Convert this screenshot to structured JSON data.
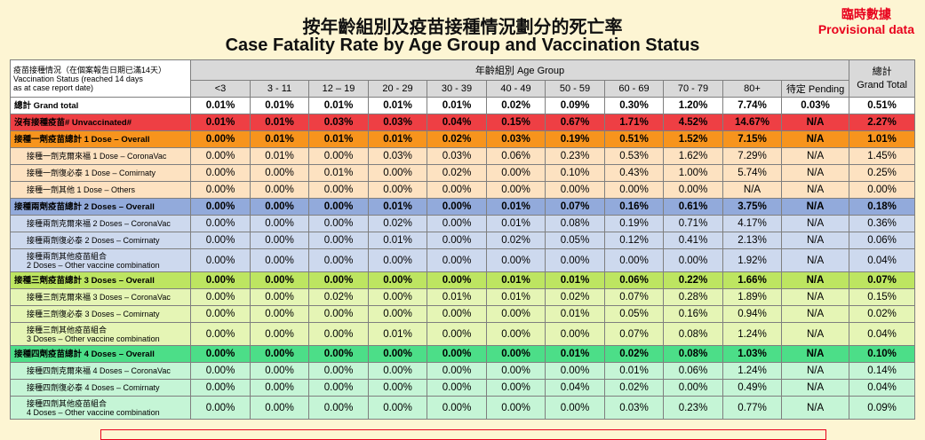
{
  "title_zh": "按年齡組別及疫苗接種情況劃分的死亡率",
  "title_en": "Case Fatality Rate by Age Group and Vaccination Status",
  "provisional_zh": "臨時數據",
  "provisional_en": "Provisional data",
  "header": {
    "status_label_zh": "疫苗接種情況（在個案報告日期已滿14天）",
    "status_label_en1": "Vaccination Status (reached 14 days",
    "status_label_en2": "as at case report date)",
    "age_group": "年齡組別 Age Group",
    "ages": [
      "<3",
      "3 - 11",
      "12 – 19",
      "20 - 29",
      "30 - 39",
      "40 - 49",
      "50 - 59",
      "60 - 69",
      "70 - 79",
      "80+",
      "待定 Pending"
    ],
    "total_zh": "總計",
    "total_en": "Grand Total"
  },
  "colors": {
    "white": "#ffffff",
    "red": "#ee3f44",
    "orange": "#f7941d",
    "peach": "#fde2c1",
    "blue": "#92aadb",
    "lightblue": "#cdd9ee",
    "lime": "#bde561",
    "lightlime": "#e5f5b5",
    "green": "#4cde88",
    "lightgreen": "#c5f5d6"
  },
  "rows": [
    {
      "label1": "總計 Grand total",
      "label2": "",
      "bold": true,
      "sub": false,
      "tall": false,
      "color": "white",
      "values": [
        "0.01%",
        "0.01%",
        "0.01%",
        "0.01%",
        "0.01%",
        "0.02%",
        "0.09%",
        "0.30%",
        "1.20%",
        "7.74%",
        "0.03%",
        "0.51%"
      ]
    },
    {
      "label1": "沒有接種疫苗# Unvaccinated#",
      "label2": "",
      "bold": true,
      "sub": false,
      "tall": false,
      "color": "red",
      "values": [
        "0.01%",
        "0.01%",
        "0.03%",
        "0.03%",
        "0.04%",
        "0.15%",
        "0.67%",
        "1.71%",
        "4.52%",
        "14.67%",
        "N/A",
        "2.27%"
      ]
    },
    {
      "label1": "接種一劑疫苗總計 1 Dose – Overall",
      "label2": "",
      "bold": true,
      "sub": false,
      "tall": false,
      "color": "orange",
      "values": [
        "0.00%",
        "0.01%",
        "0.01%",
        "0.01%",
        "0.02%",
        "0.03%",
        "0.19%",
        "0.51%",
        "1.52%",
        "7.15%",
        "N/A",
        "1.01%"
      ]
    },
    {
      "label1": "接種一劑克爾來福 1 Dose – CoronaVac",
      "label2": "",
      "bold": false,
      "sub": true,
      "tall": false,
      "color": "peach",
      "values": [
        "0.00%",
        "0.01%",
        "0.00%",
        "0.03%",
        "0.03%",
        "0.06%",
        "0.23%",
        "0.53%",
        "1.62%",
        "7.29%",
        "N/A",
        "1.45%"
      ]
    },
    {
      "label1": "接種一劑復必泰 1 Dose – Comirnaty",
      "label2": "",
      "bold": false,
      "sub": true,
      "tall": false,
      "color": "peach",
      "values": [
        "0.00%",
        "0.00%",
        "0.01%",
        "0.00%",
        "0.02%",
        "0.00%",
        "0.10%",
        "0.43%",
        "1.00%",
        "5.74%",
        "N/A",
        "0.25%"
      ]
    },
    {
      "label1": "接種一劑其他 1 Dose – Others",
      "label2": "",
      "bold": false,
      "sub": true,
      "tall": false,
      "color": "peach",
      "values": [
        "0.00%",
        "0.00%",
        "0.00%",
        "0.00%",
        "0.00%",
        "0.00%",
        "0.00%",
        "0.00%",
        "0.00%",
        "N/A",
        "N/A",
        "0.00%"
      ]
    },
    {
      "label1": "接種兩劑疫苗總計 2 Doses – Overall",
      "label2": "",
      "bold": true,
      "sub": false,
      "tall": false,
      "color": "blue",
      "values": [
        "0.00%",
        "0.00%",
        "0.00%",
        "0.01%",
        "0.00%",
        "0.01%",
        "0.07%",
        "0.16%",
        "0.61%",
        "3.75%",
        "N/A",
        "0.18%"
      ]
    },
    {
      "label1": "接種兩劑克爾來福 2 Doses – CoronaVac",
      "label2": "",
      "bold": false,
      "sub": true,
      "tall": false,
      "color": "lightblue",
      "values": [
        "0.00%",
        "0.00%",
        "0.00%",
        "0.02%",
        "0.00%",
        "0.01%",
        "0.08%",
        "0.19%",
        "0.71%",
        "4.17%",
        "N/A",
        "0.36%"
      ]
    },
    {
      "label1": "接種兩劑復必泰 2 Doses – Comirnaty",
      "label2": "",
      "bold": false,
      "sub": true,
      "tall": false,
      "color": "lightblue",
      "values": [
        "0.00%",
        "0.00%",
        "0.00%",
        "0.01%",
        "0.00%",
        "0.02%",
        "0.05%",
        "0.12%",
        "0.41%",
        "2.13%",
        "N/A",
        "0.06%"
      ]
    },
    {
      "label1": "接種兩劑其他疫苗組合",
      "label2": "2 Doses – Other vaccine combination",
      "bold": false,
      "sub": true,
      "tall": true,
      "color": "lightblue",
      "values": [
        "0.00%",
        "0.00%",
        "0.00%",
        "0.00%",
        "0.00%",
        "0.00%",
        "0.00%",
        "0.00%",
        "0.00%",
        "1.92%",
        "N/A",
        "0.04%"
      ]
    },
    {
      "label1": "接種三劑疫苗總計 3 Doses – Overall",
      "label2": "",
      "bold": true,
      "sub": false,
      "tall": false,
      "color": "lime",
      "values": [
        "0.00%",
        "0.00%",
        "0.00%",
        "0.00%",
        "0.00%",
        "0.01%",
        "0.01%",
        "0.06%",
        "0.22%",
        "1.66%",
        "N/A",
        "0.07%"
      ]
    },
    {
      "label1": "接種三劑克爾來福 3 Doses – CoronaVac",
      "label2": "",
      "bold": false,
      "sub": true,
      "tall": false,
      "color": "lightlime",
      "values": [
        "0.00%",
        "0.00%",
        "0.02%",
        "0.00%",
        "0.01%",
        "0.01%",
        "0.02%",
        "0.07%",
        "0.28%",
        "1.89%",
        "N/A",
        "0.15%"
      ]
    },
    {
      "label1": "接種三劑復必泰 3 Doses – Comirnaty",
      "label2": "",
      "bold": false,
      "sub": true,
      "tall": false,
      "color": "lightlime",
      "values": [
        "0.00%",
        "0.00%",
        "0.00%",
        "0.00%",
        "0.00%",
        "0.00%",
        "0.01%",
        "0.05%",
        "0.16%",
        "0.94%",
        "N/A",
        "0.02%"
      ]
    },
    {
      "label1": "接種三劑其他疫苗組合",
      "label2": "3 Doses – Other vaccine combination",
      "bold": false,
      "sub": true,
      "tall": true,
      "color": "lightlime",
      "values": [
        "0.00%",
        "0.00%",
        "0.00%",
        "0.01%",
        "0.00%",
        "0.00%",
        "0.00%",
        "0.07%",
        "0.08%",
        "1.24%",
        "N/A",
        "0.04%"
      ]
    },
    {
      "label1": "接種四劑疫苗總計 4 Doses – Overall",
      "label2": "",
      "bold": true,
      "sub": false,
      "tall": false,
      "color": "green",
      "values": [
        "0.00%",
        "0.00%",
        "0.00%",
        "0.00%",
        "0.00%",
        "0.00%",
        "0.01%",
        "0.02%",
        "0.08%",
        "1.03%",
        "N/A",
        "0.10%"
      ]
    },
    {
      "label1": "接種四劑克爾來福 4 Doses – CoronaVac",
      "label2": "",
      "bold": false,
      "sub": true,
      "tall": false,
      "color": "lightgreen",
      "values": [
        "0.00%",
        "0.00%",
        "0.00%",
        "0.00%",
        "0.00%",
        "0.00%",
        "0.00%",
        "0.01%",
        "0.06%",
        "1.24%",
        "N/A",
        "0.14%"
      ]
    },
    {
      "label1": "接種四劑復必泰 4 Doses – Comirnaty",
      "label2": "",
      "bold": false,
      "sub": true,
      "tall": false,
      "color": "lightgreen",
      "values": [
        "0.00%",
        "0.00%",
        "0.00%",
        "0.00%",
        "0.00%",
        "0.00%",
        "0.04%",
        "0.02%",
        "0.00%",
        "0.49%",
        "N/A",
        "0.04%"
      ]
    },
    {
      "label1": "接種四劑其他疫苗組合",
      "label2": "4 Doses – Other vaccine combination",
      "bold": false,
      "sub": true,
      "tall": true,
      "color": "lightgreen",
      "values": [
        "0.00%",
        "0.00%",
        "0.00%",
        "0.00%",
        "0.00%",
        "0.00%",
        "0.00%",
        "0.03%",
        "0.23%",
        "0.77%",
        "N/A",
        "0.09%"
      ]
    }
  ]
}
